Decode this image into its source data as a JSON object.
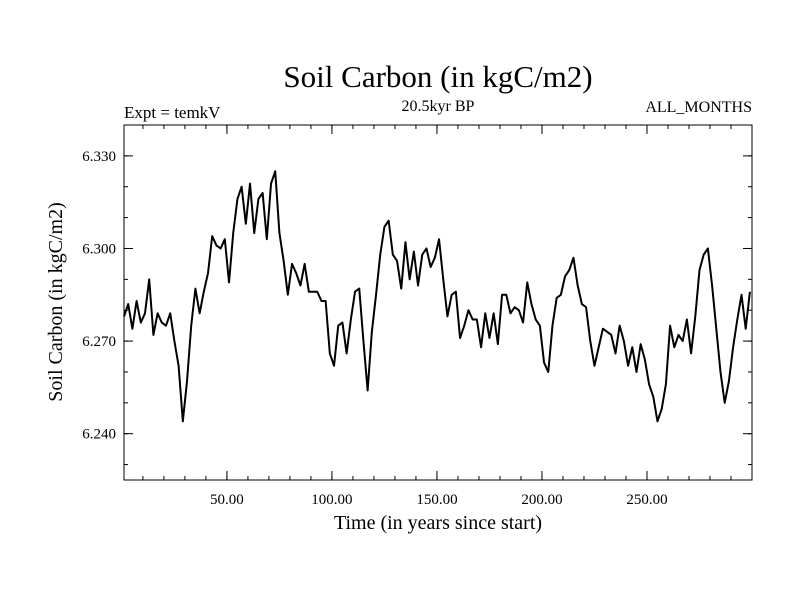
{
  "chart_data": {
    "type": "line",
    "title": "Soil Carbon (in kgC/m2)",
    "subtitle": "20.5kyr BP",
    "left_label": "Expt = temkV",
    "right_label": "ALL_MONTHS",
    "xlabel": "Time (in years since start)",
    "ylabel": "Soil Carbon (in kgC/m2)",
    "xlim": [
      1,
      300
    ],
    "ylim": [
      6.225,
      6.34
    ],
    "x_ticks": [
      {
        "value": 50,
        "label": "50.00"
      },
      {
        "value": 100,
        "label": "100.00"
      },
      {
        "value": 150,
        "label": "150.00"
      },
      {
        "value": 200,
        "label": "200.00"
      },
      {
        "value": 250,
        "label": "250.00"
      }
    ],
    "y_ticks": [
      {
        "value": 6.24,
        "label": "6.240"
      },
      {
        "value": 6.27,
        "label": "6.270"
      },
      {
        "value": 6.3,
        "label": "6.300"
      },
      {
        "value": 6.33,
        "label": "6.330"
      }
    ],
    "x_minor_step": 10,
    "y_minor_step": 0.01,
    "series": [
      {
        "name": "Soil Carbon",
        "color": "#000000",
        "x": [
          1,
          3,
          5,
          7,
          9,
          11,
          13,
          15,
          17,
          19,
          21,
          23,
          25,
          27,
          29,
          31,
          33,
          35,
          37,
          39,
          41,
          43,
          45,
          47,
          49,
          51,
          53,
          55,
          57,
          59,
          61,
          63,
          65,
          67,
          69,
          71,
          73,
          75,
          77,
          79,
          81,
          83,
          85,
          87,
          89,
          91,
          93,
          95,
          97,
          99,
          101,
          103,
          105,
          107,
          109,
          111,
          113,
          115,
          117,
          119,
          121,
          123,
          125,
          127,
          129,
          131,
          133,
          135,
          137,
          139,
          141,
          143,
          145,
          147,
          149,
          151,
          153,
          155,
          157,
          159,
          161,
          163,
          165,
          167,
          169,
          171,
          173,
          175,
          177,
          179,
          181,
          183,
          185,
          187,
          189,
          191,
          193,
          195,
          197,
          199,
          201,
          203,
          205,
          207,
          209,
          211,
          213,
          215,
          217,
          219,
          221,
          223,
          225,
          227,
          229,
          231,
          233,
          235,
          237,
          239,
          241,
          243,
          245,
          247,
          249,
          251,
          253,
          255,
          257,
          259,
          261,
          263,
          265,
          267,
          269,
          271,
          273,
          275,
          277,
          279,
          281,
          283,
          285,
          287,
          289,
          291,
          293,
          295,
          297,
          299
        ],
        "values": [
          6.278,
          6.282,
          6.274,
          6.283,
          6.276,
          6.279,
          6.29,
          6.272,
          6.279,
          6.276,
          6.275,
          6.279,
          6.27,
          6.262,
          6.244,
          6.257,
          6.275,
          6.287,
          6.279,
          6.286,
          6.292,
          6.304,
          6.301,
          6.3,
          6.303,
          6.289,
          6.305,
          6.316,
          6.32,
          6.308,
          6.321,
          6.305,
          6.316,
          6.318,
          6.303,
          6.321,
          6.325,
          6.305,
          6.296,
          6.285,
          6.295,
          6.292,
          6.288,
          6.295,
          6.286,
          6.286,
          6.286,
          6.283,
          6.283,
          6.266,
          6.262,
          6.275,
          6.276,
          6.266,
          6.277,
          6.286,
          6.287,
          6.27,
          6.254,
          6.273,
          6.285,
          6.298,
          6.307,
          6.309,
          6.298,
          6.296,
          6.287,
          6.302,
          6.29,
          6.299,
          6.288,
          6.298,
          6.3,
          6.294,
          6.297,
          6.303,
          6.29,
          6.278,
          6.285,
          6.286,
          6.271,
          6.275,
          6.28,
          6.277,
          6.277,
          6.268,
          6.279,
          6.271,
          6.279,
          6.269,
          6.285,
          6.285,
          6.279,
          6.281,
          6.28,
          6.276,
          6.289,
          6.282,
          6.277,
          6.275,
          6.263,
          6.26,
          6.275,
          6.284,
          6.285,
          6.291,
          6.293,
          6.297,
          6.288,
          6.282,
          6.281,
          6.27,
          6.262,
          6.268,
          6.274,
          6.273,
          6.272,
          6.266,
          6.275,
          6.27,
          6.262,
          6.268,
          6.26,
          6.269,
          6.264,
          6.256,
          6.252,
          6.244,
          6.248,
          6.256,
          6.275,
          6.268,
          6.272,
          6.27,
          6.277,
          6.266,
          6.278,
          6.293,
          6.298,
          6.3,
          6.288,
          6.274,
          6.26,
          6.25,
          6.257,
          6.268,
          6.277,
          6.285,
          6.274,
          6.286
        ]
      }
    ]
  }
}
